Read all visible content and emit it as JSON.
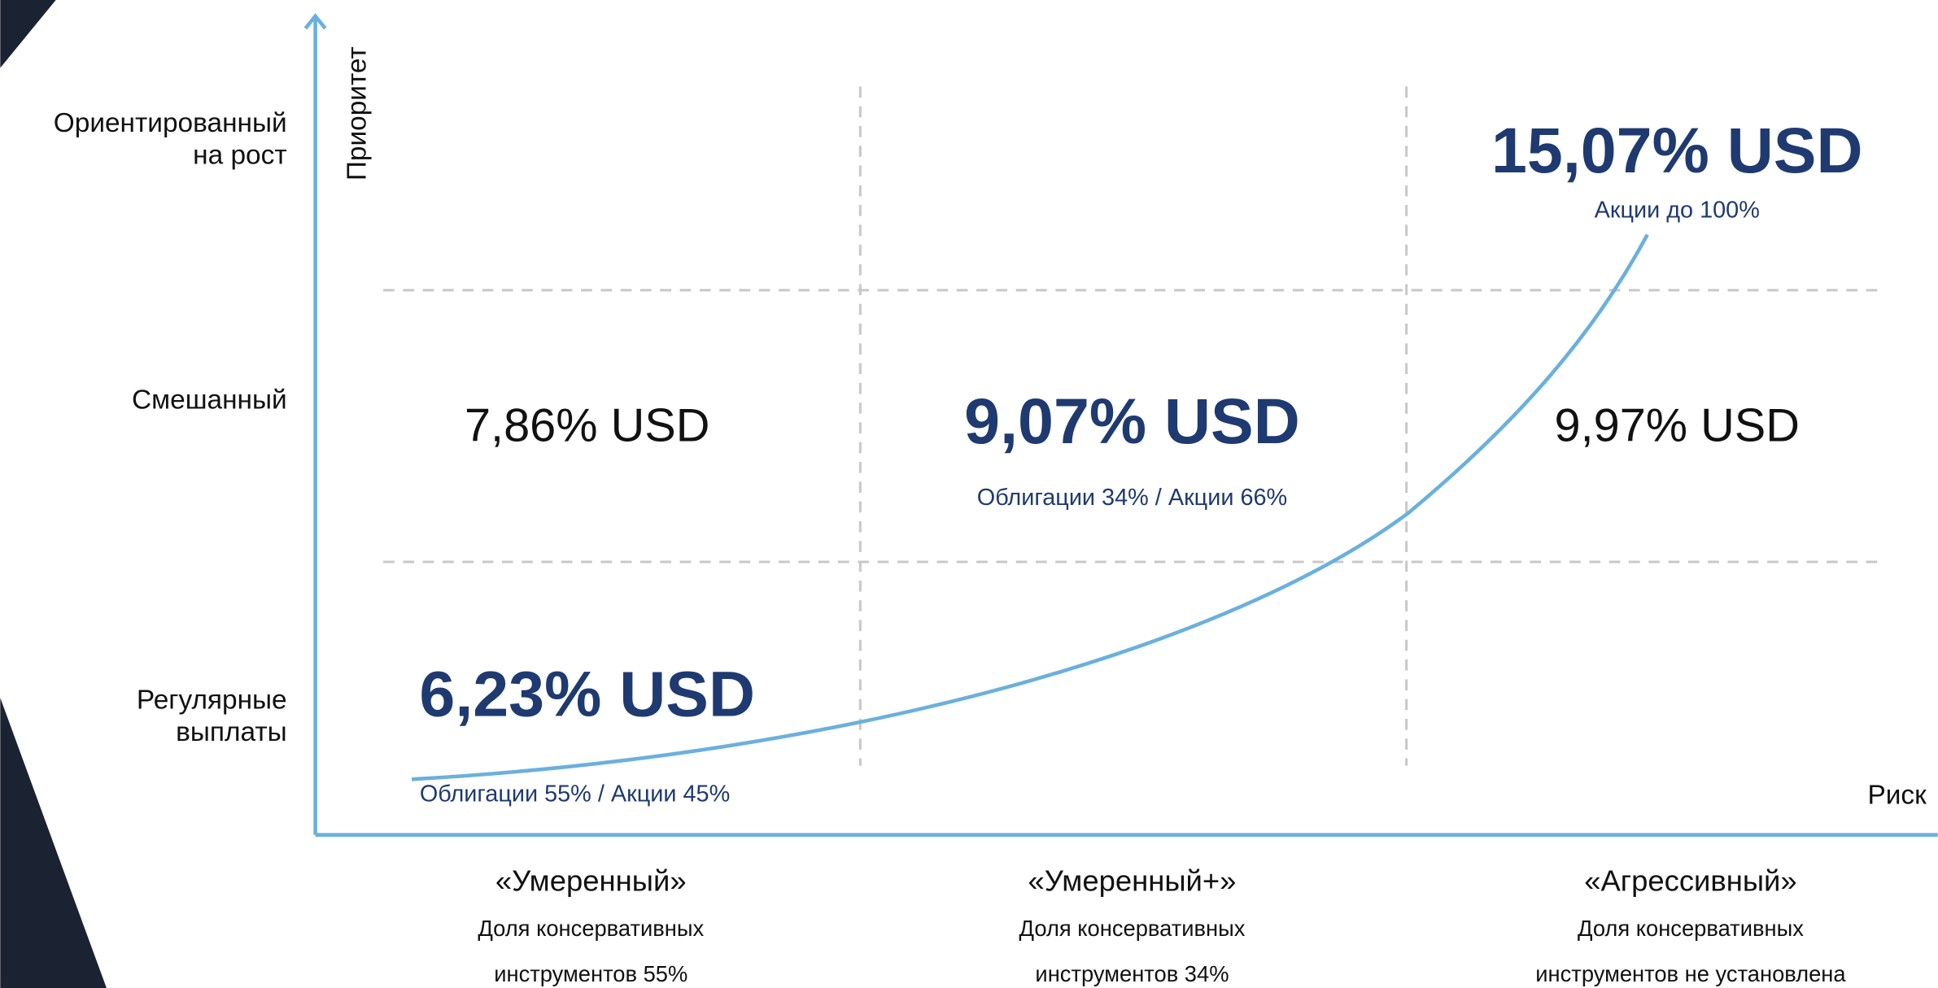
{
  "y_axis_label": "Приоритет",
  "x_axis_label": "Риск",
  "rows": [
    {
      "lines": [
        "Ориентированный",
        "на рост"
      ]
    },
    {
      "lines": [
        "Смешанный"
      ]
    },
    {
      "lines": [
        "Регулярные",
        "выплаты"
      ]
    }
  ],
  "cells": [
    {
      "value": "6,23% USD",
      "note": "Облигации 55% / Акции 45%"
    },
    {
      "value": "7,86% USD"
    },
    {
      "value": "9,07% USD",
      "note": "Облигации 34% / Акции 66%"
    },
    {
      "value": "9,97% USD"
    },
    {
      "value": "15,07% USD",
      "note": "Акции до 100%"
    }
  ],
  "columns": [
    {
      "name": "«Умеренный»",
      "lines": [
        "Доля консервативных",
        "инструментов 55%"
      ]
    },
    {
      "name": "«Умеренный+»",
      "lines": [
        "Доля консервативных",
        "инструментов 34%"
      ]
    },
    {
      "name": "«Агрессивный»",
      "lines": [
        "Доля консервативных",
        "инструментов не установлена"
      ]
    }
  ]
}
